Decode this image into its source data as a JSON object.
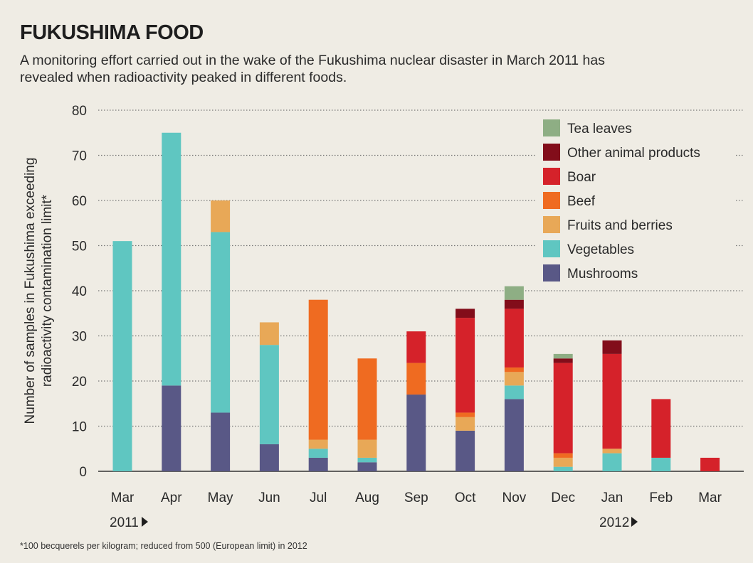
{
  "title": "FUKUSHIMA FOOD",
  "subtitle": "A monitoring effort carried out in the wake of the Fukushima nuclear disaster in March 2011 has revealed when radioactivity peaked in different foods.",
  "footnote": "*100 becquerels per kilogram; reduced from 500 (European limit) in 2012",
  "colors": {
    "background": "#efece4",
    "grid": "#777777"
  },
  "chart_data": {
    "type": "bar",
    "stacked": true,
    "categories": [
      "Mar",
      "Apr",
      "May",
      "Jun",
      "Jul",
      "Aug",
      "Sep",
      "Oct",
      "Nov",
      "Dec",
      "Jan",
      "Feb",
      "Mar"
    ],
    "year_labels": [
      {
        "text": "2011",
        "category_index": 0
      },
      {
        "text": "2012",
        "category_index": 10
      }
    ],
    "ylabel_lines": [
      "Number of samples in Fukushima exceeding",
      "radioactivity contamination limit*"
    ],
    "ylim": [
      0,
      80
    ],
    "yticks": [
      0,
      10,
      20,
      30,
      40,
      50,
      60,
      70,
      80
    ],
    "grid": true,
    "legend_position": "top-right",
    "series": [
      {
        "name": "Mushrooms",
        "color": "#595886",
        "values": [
          0,
          19,
          13,
          6,
          3,
          2,
          17,
          9,
          16,
          0,
          0,
          0,
          0
        ]
      },
      {
        "name": "Vegetables",
        "color": "#5fc6c1",
        "values": [
          51,
          56,
          40,
          22,
          2,
          1,
          0,
          0,
          3,
          1,
          4,
          3,
          0
        ]
      },
      {
        "name": "Fruits and berries",
        "color": "#e8a857",
        "values": [
          0,
          0,
          7,
          5,
          2,
          4,
          0,
          3,
          3,
          2,
          1,
          0,
          0
        ]
      },
      {
        "name": "Beef",
        "color": "#ef6b21",
        "values": [
          0,
          0,
          0,
          0,
          31,
          18,
          7,
          1,
          1,
          1,
          0,
          0,
          0
        ]
      },
      {
        "name": "Boar",
        "color": "#d5222a",
        "values": [
          0,
          0,
          0,
          0,
          0,
          0,
          7,
          21,
          13,
          20,
          21,
          13,
          3
        ]
      },
      {
        "name": "Other animal products",
        "color": "#820d1a",
        "values": [
          0,
          0,
          0,
          0,
          0,
          0,
          0,
          2,
          2,
          1,
          3,
          0,
          0
        ]
      },
      {
        "name": "Tea leaves",
        "color": "#8eae84",
        "values": [
          0,
          0,
          0,
          0,
          0,
          0,
          0,
          0,
          3,
          1,
          0,
          0,
          0
        ]
      }
    ]
  }
}
